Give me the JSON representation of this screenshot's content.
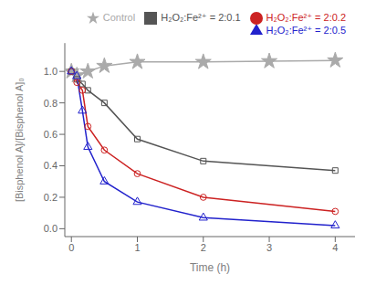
{
  "chart_data": {
    "type": "line",
    "xlabel": "Time (h)",
    "ylabel": "[Bisphenol A]/[Bisphenol A]₀",
    "xlim": [
      -0.1,
      4.3
    ],
    "ylim": [
      -0.05,
      1.18
    ],
    "xticks": [
      0,
      1,
      2,
      3,
      4
    ],
    "yticks": [
      {
        "value": 0,
        "label": "0.0"
      },
      0.2,
      0.4,
      0.6,
      0.8,
      {
        "value": 1,
        "label": "1.0"
      }
    ],
    "grid": false,
    "legend": "upper right",
    "series": [
      {
        "name": "Control",
        "color": "#aaaaaa",
        "marker": "star",
        "x": [
          0,
          0.083,
          0.25,
          0.5,
          1.0,
          2.0,
          3.0,
          4.0
        ],
        "values": [
          1.0,
          0.975,
          1.0,
          1.035,
          1.06,
          1.06,
          1.065,
          1.07
        ]
      },
      {
        "name": "H₂O₂:Fe²⁺ = 2:0.1",
        "color": "#555555",
        "marker": "square",
        "x": [
          0,
          0.083,
          0.167,
          0.25,
          0.5,
          1.0,
          2.0,
          4.0
        ],
        "values": [
          1.0,
          0.95,
          0.92,
          0.88,
          0.8,
          0.57,
          0.43,
          0.37
        ]
      },
      {
        "name": "H₂O₂:Fe²⁺ = 2:0.2",
        "color": "#cc2222",
        "marker": "circle",
        "x": [
          0,
          0.083,
          0.167,
          0.25,
          0.5,
          1.0,
          2.0,
          4.0
        ],
        "values": [
          1.0,
          0.93,
          0.88,
          0.65,
          0.5,
          0.35,
          0.2,
          0.11
        ]
      },
      {
        "name": "H₂O₂:Fe²⁺ = 2:0.5",
        "color": "#2222cc",
        "marker": "triangle",
        "x": [
          0,
          0.083,
          0.167,
          0.25,
          0.5,
          1.0,
          2.0,
          4.0
        ],
        "values": [
          1.0,
          0.97,
          0.75,
          0.52,
          0.3,
          0.17,
          0.07,
          0.02
        ]
      }
    ]
  }
}
